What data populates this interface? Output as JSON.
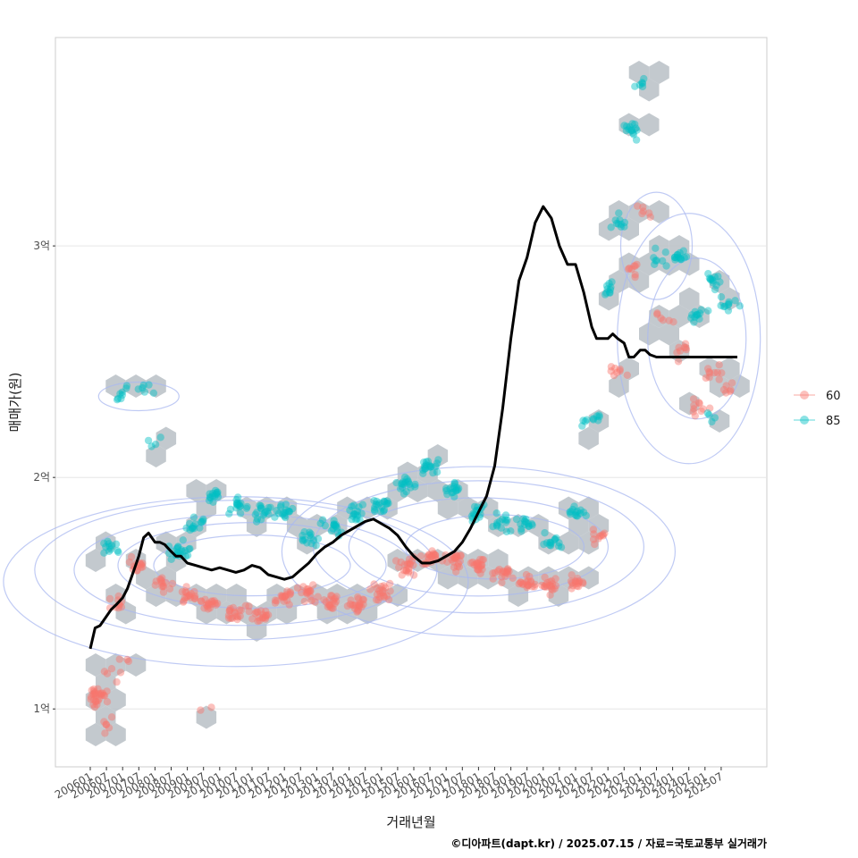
{
  "chart_data": {
    "type": "scatter",
    "xlabel": "거래년월",
    "ylabel": "매매가(원)",
    "caption": "©디아파트(dapt.kr) / 2025.07.15 / 자료=국토교통부 실거래가",
    "ylim": [
      0.75,
      3.9
    ],
    "y_unit": "억",
    "y_ticks": [
      {
        "value": 1,
        "label": "1억"
      },
      {
        "value": 2,
        "label": "2억"
      },
      {
        "value": 3,
        "label": "3억"
      }
    ],
    "x_ticks": [
      "200601",
      "200607",
      "200701",
      "200707",
      "200801",
      "200807",
      "200901",
      "200907",
      "201001",
      "201007",
      "201101",
      "201107",
      "201201",
      "201207",
      "201301",
      "201307",
      "201401",
      "201407",
      "201501",
      "201507",
      "201601",
      "201607",
      "201701",
      "201707",
      "201801",
      "201807",
      "201901",
      "201907",
      "202001",
      "202007",
      "202101",
      "202107",
      "202201",
      "202207",
      "202301",
      "202307",
      "202401",
      "202407",
      "202501",
      "202507"
    ],
    "grid": "horizontal-only",
    "legend_position": "right",
    "series": [
      {
        "name": "60",
        "color": "#f8766d",
        "clusters": [
          {
            "t": 0.5,
            "y": 1.05,
            "n": 28
          },
          {
            "t": 0.8,
            "y": 0.93,
            "n": 6
          },
          {
            "t": 1.2,
            "y": 1.15,
            "n": 5
          },
          {
            "t": 1.8,
            "y": 1.45,
            "n": 10
          },
          {
            "t": 3.0,
            "y": 1.62,
            "n": 14
          },
          {
            "t": 4.5,
            "y": 1.55,
            "n": 14
          },
          {
            "t": 6.0,
            "y": 1.5,
            "n": 16
          },
          {
            "t": 7.5,
            "y": 1.45,
            "n": 18
          },
          {
            "t": 9.0,
            "y": 1.42,
            "n": 18
          },
          {
            "t": 10.5,
            "y": 1.4,
            "n": 18
          },
          {
            "t": 12.0,
            "y": 1.48,
            "n": 18
          },
          {
            "t": 13.5,
            "y": 1.5,
            "n": 18
          },
          {
            "t": 15.0,
            "y": 1.46,
            "n": 18
          },
          {
            "t": 16.5,
            "y": 1.45,
            "n": 20
          },
          {
            "t": 18.0,
            "y": 1.5,
            "n": 20
          },
          {
            "t": 19.5,
            "y": 1.62,
            "n": 20
          },
          {
            "t": 21.0,
            "y": 1.65,
            "n": 20
          },
          {
            "t": 22.5,
            "y": 1.64,
            "n": 20
          },
          {
            "t": 24.0,
            "y": 1.62,
            "n": 20
          },
          {
            "t": 25.5,
            "y": 1.58,
            "n": 18
          },
          {
            "t": 27.0,
            "y": 1.55,
            "n": 18
          },
          {
            "t": 28.5,
            "y": 1.53,
            "n": 18
          },
          {
            "t": 30.0,
            "y": 1.55,
            "n": 16
          },
          {
            "t": 31.3,
            "y": 1.75,
            "n": 10
          },
          {
            "t": 32.5,
            "y": 2.45,
            "n": 8
          },
          {
            "t": 33.5,
            "y": 2.9,
            "n": 8
          },
          {
            "t": 34.3,
            "y": 3.15,
            "n": 6
          },
          {
            "t": 35.5,
            "y": 2.7,
            "n": 6
          },
          {
            "t": 36.5,
            "y": 2.55,
            "n": 8
          },
          {
            "t": 37.5,
            "y": 2.3,
            "n": 10
          },
          {
            "t": 38.5,
            "y": 2.45,
            "n": 10
          },
          {
            "t": 39.5,
            "y": 2.38,
            "n": 6
          },
          {
            "t": 7.3,
            "y": 1.0,
            "n": 2
          },
          {
            "t": 2.0,
            "y": 1.2,
            "n": 3
          }
        ]
      },
      {
        "name": "85",
        "color": "#00bfc4",
        "clusters": [
          {
            "t": 1.2,
            "y": 1.7,
            "n": 12
          },
          {
            "t": 2.0,
            "y": 2.35,
            "n": 8
          },
          {
            "t": 3.4,
            "y": 2.38,
            "n": 6
          },
          {
            "t": 4.1,
            "y": 2.15,
            "n": 4
          },
          {
            "t": 5.5,
            "y": 1.68,
            "n": 20
          },
          {
            "t": 6.6,
            "y": 1.8,
            "n": 14
          },
          {
            "t": 7.6,
            "y": 1.92,
            "n": 14
          },
          {
            "t": 9.0,
            "y": 1.88,
            "n": 16
          },
          {
            "t": 10.5,
            "y": 1.85,
            "n": 16
          },
          {
            "t": 12.0,
            "y": 1.86,
            "n": 16
          },
          {
            "t": 13.5,
            "y": 1.73,
            "n": 14
          },
          {
            "t": 15.0,
            "y": 1.78,
            "n": 16
          },
          {
            "t": 16.5,
            "y": 1.85,
            "n": 16
          },
          {
            "t": 18.0,
            "y": 1.88,
            "n": 18
          },
          {
            "t": 19.5,
            "y": 1.97,
            "n": 18
          },
          {
            "t": 21.0,
            "y": 2.05,
            "n": 18
          },
          {
            "t": 22.5,
            "y": 1.95,
            "n": 16
          },
          {
            "t": 24.0,
            "y": 1.85,
            "n": 16
          },
          {
            "t": 25.5,
            "y": 1.8,
            "n": 14
          },
          {
            "t": 27.0,
            "y": 1.8,
            "n": 14
          },
          {
            "t": 28.5,
            "y": 1.72,
            "n": 14
          },
          {
            "t": 30.0,
            "y": 1.85,
            "n": 14
          },
          {
            "t": 31.0,
            "y": 2.25,
            "n": 10
          },
          {
            "t": 32.0,
            "y": 2.8,
            "n": 10
          },
          {
            "t": 32.8,
            "y": 3.1,
            "n": 10
          },
          {
            "t": 33.5,
            "y": 3.5,
            "n": 14
          },
          {
            "t": 34.2,
            "y": 3.7,
            "n": 6
          },
          {
            "t": 35.0,
            "y": 2.95,
            "n": 8
          },
          {
            "t": 36.5,
            "y": 2.95,
            "n": 14
          },
          {
            "t": 37.5,
            "y": 2.7,
            "n": 12
          },
          {
            "t": 38.5,
            "y": 2.85,
            "n": 12
          },
          {
            "t": 39.5,
            "y": 2.75,
            "n": 10
          },
          {
            "t": 38.3,
            "y": 2.25,
            "n": 4
          }
        ]
      }
    ],
    "median_line": {
      "color": "#000000",
      "t": [
        0.0,
        0.3,
        0.6,
        1.0,
        1.3,
        1.6,
        2.0,
        2.3,
        2.6,
        3.0,
        3.3,
        3.6,
        4.0,
        4.3,
        4.6,
        5.0,
        5.3,
        5.6,
        6.0,
        6.5,
        7.0,
        7.5,
        8.0,
        8.5,
        9.0,
        9.5,
        10.0,
        10.5,
        11.0,
        11.5,
        12.0,
        12.5,
        13.0,
        13.5,
        14.0,
        14.5,
        15.0,
        15.5,
        16.0,
        16.5,
        17.0,
        17.5,
        18.0,
        18.5,
        19.0,
        19.5,
        20.0,
        20.5,
        21.0,
        21.5,
        22.0,
        22.5,
        23.0,
        23.5,
        24.0,
        24.5,
        25.0,
        25.5,
        26.0,
        26.5,
        27.0,
        27.5,
        28.0,
        28.5,
        29.0,
        29.5,
        30.0,
        30.5,
        31.0,
        31.3,
        31.6,
        32.0,
        32.3,
        32.6,
        33.0,
        33.3,
        33.6,
        34.0,
        34.3,
        34.6,
        35.0,
        35.3,
        35.6,
        36.0,
        36.5,
        37.0,
        37.5,
        38.0,
        38.5,
        39.0,
        39.5,
        40.0
      ],
      "y": [
        1.26,
        1.35,
        1.36,
        1.4,
        1.43,
        1.45,
        1.48,
        1.52,
        1.58,
        1.66,
        1.74,
        1.76,
        1.72,
        1.72,
        1.71,
        1.68,
        1.66,
        1.66,
        1.63,
        1.62,
        1.61,
        1.6,
        1.61,
        1.6,
        1.59,
        1.6,
        1.62,
        1.61,
        1.58,
        1.57,
        1.56,
        1.57,
        1.6,
        1.63,
        1.67,
        1.7,
        1.72,
        1.75,
        1.77,
        1.79,
        1.81,
        1.82,
        1.8,
        1.78,
        1.75,
        1.7,
        1.66,
        1.63,
        1.63,
        1.64,
        1.66,
        1.68,
        1.72,
        1.78,
        1.85,
        1.92,
        2.05,
        2.3,
        2.6,
        2.85,
        2.95,
        3.1,
        3.17,
        3.12,
        3.0,
        2.92,
        2.92,
        2.8,
        2.65,
        2.6,
        2.6,
        2.6,
        2.62,
        2.6,
        2.58,
        2.52,
        2.52,
        2.55,
        2.55,
        2.53,
        2.52,
        2.52,
        2.52,
        2.52,
        2.52,
        2.52,
        2.52,
        2.52,
        2.52,
        2.52,
        2.52,
        2.52
      ],
      "t_start": 0.0
    }
  }
}
